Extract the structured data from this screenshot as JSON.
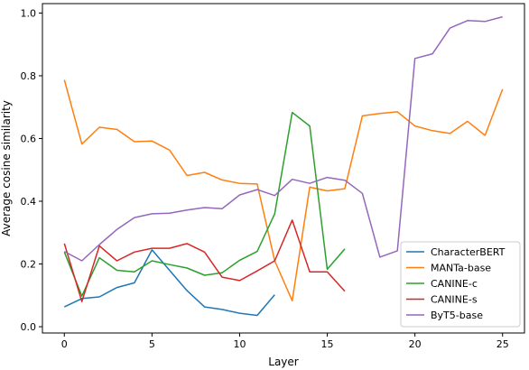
{
  "chart_data": {
    "type": "line",
    "title": "",
    "xlabel": "Layer",
    "ylabel": "Average cosine similarity",
    "xlim": [
      -1.25,
      26.25
    ],
    "ylim": [
      -0.02,
      1.03
    ],
    "xticks": [
      0,
      5,
      10,
      15,
      20,
      25
    ],
    "yticks": [
      0.0,
      0.2,
      0.4,
      0.6,
      0.8,
      1.0
    ],
    "ytick_labels": [
      "0.0",
      "0.2",
      "0.4",
      "0.6",
      "0.8",
      "1.0"
    ],
    "grid": false,
    "legend_position": "lower-right",
    "series": [
      {
        "name": "CharacterBERT",
        "color": "#1f77b4",
        "x": [
          0,
          1,
          2,
          3,
          4,
          5,
          6,
          7,
          8,
          9,
          10,
          11,
          12
        ],
        "values": [
          0.063,
          0.09,
          0.095,
          0.125,
          0.14,
          0.245,
          0.18,
          0.115,
          0.063,
          0.055,
          0.043,
          0.036,
          0.102
        ]
      },
      {
        "name": "MANTa-base",
        "color": "#ff7f0e",
        "x": [
          0,
          1,
          2,
          3,
          4,
          5,
          6,
          7,
          8,
          9,
          10,
          11,
          12,
          13,
          14,
          15,
          16,
          17,
          18,
          19,
          20,
          21,
          22,
          23,
          24,
          25
        ],
        "values": [
          0.787,
          0.582,
          0.636,
          0.629,
          0.59,
          0.592,
          0.563,
          0.482,
          0.492,
          0.468,
          0.457,
          0.455,
          0.21,
          0.083,
          0.445,
          0.433,
          0.44,
          0.672,
          0.68,
          0.685,
          0.64,
          0.625,
          0.616,
          0.655,
          0.61,
          0.757
        ]
      },
      {
        "name": "CANINE-c",
        "color": "#2ca02c",
        "x": [
          0,
          1,
          2,
          3,
          4,
          5,
          6,
          7,
          8,
          9,
          10,
          11,
          12,
          13,
          14,
          15,
          16
        ],
        "values": [
          0.238,
          0.098,
          0.22,
          0.18,
          0.175,
          0.21,
          0.198,
          0.187,
          0.164,
          0.172,
          0.212,
          0.24,
          0.36,
          0.683,
          0.64,
          0.183,
          0.248
        ]
      },
      {
        "name": "CANINE-s",
        "color": "#d62728",
        "x": [
          0,
          1,
          2,
          3,
          4,
          5,
          6,
          7,
          8,
          9,
          10,
          11,
          12,
          13,
          14,
          15,
          16
        ],
        "values": [
          0.265,
          0.08,
          0.258,
          0.21,
          0.238,
          0.25,
          0.25,
          0.265,
          0.238,
          0.158,
          0.147,
          0.178,
          0.21,
          0.34,
          0.175,
          0.175,
          0.113
        ]
      },
      {
        "name": "ByT5-base",
        "color": "#9467bd",
        "x": [
          0,
          1,
          2,
          3,
          4,
          5,
          6,
          7,
          8,
          9,
          10,
          11,
          12,
          13,
          14,
          15,
          16,
          17,
          18,
          19,
          20,
          21,
          22,
          23,
          24,
          25
        ],
        "values": [
          0.24,
          0.21,
          0.262,
          0.31,
          0.348,
          0.36,
          0.362,
          0.372,
          0.38,
          0.376,
          0.42,
          0.437,
          0.418,
          0.47,
          0.457,
          0.476,
          0.467,
          0.425,
          0.222,
          0.242,
          0.855,
          0.87,
          0.952,
          0.976,
          0.973,
          0.988
        ]
      }
    ]
  }
}
